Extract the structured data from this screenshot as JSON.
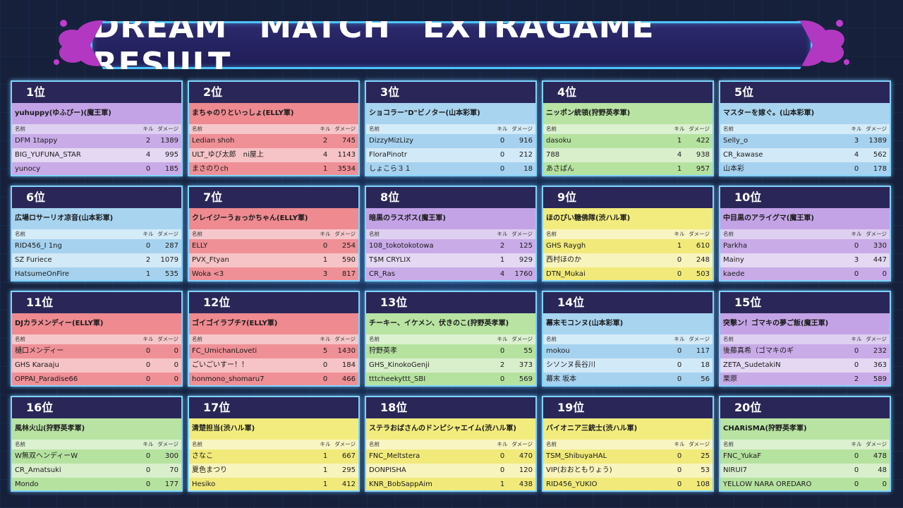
{
  "banner": {
    "title": "DREAM MATCH EXTRAGAME RESULT"
  },
  "colors": {
    "banner_bg": "#2d2a6e",
    "banner_border": "#4ec3ff",
    "rank_bg": "#2a2758",
    "splash": "#c33bd1"
  },
  "header": {
    "name": "名前",
    "kill": "キル",
    "damage": "ダメージ"
  },
  "cards": [
    {
      "rank": "1位",
      "team": "yuhuppy(ゆふぴー)(魔王軍)",
      "theme": "purple",
      "players": [
        {
          "name": "DFM 1tappy",
          "kill": "2",
          "damage": "1389"
        },
        {
          "name": "BIG_YUFUNA_STAR",
          "kill": "4",
          "damage": "995"
        },
        {
          "name": "yunocy",
          "kill": "0",
          "damage": "185"
        }
      ]
    },
    {
      "rank": "2位",
      "team": "まちゃのりといっしょ(ELLY軍)",
      "theme": "red",
      "players": [
        {
          "name": "Ledian shoh",
          "kill": "2",
          "damage": "745"
        },
        {
          "name": "ULT_ゆび太郎　ni屋上",
          "kill": "4",
          "damage": "1143"
        },
        {
          "name": "まさのりch",
          "kill": "1",
          "damage": "3534"
        }
      ]
    },
    {
      "rank": "3位",
      "team": "ショコラー\"D\"ビノター(山本彩軍)",
      "theme": "blue",
      "players": [
        {
          "name": "DizzyMizLizy",
          "kill": "0",
          "damage": "916"
        },
        {
          "name": "FloraPinotr",
          "kill": "0",
          "damage": "212"
        },
        {
          "name": "しょこら３１",
          "kill": "0",
          "damage": "18"
        }
      ]
    },
    {
      "rank": "4位",
      "team": "ニッポン統領(狩野英孝軍)",
      "theme": "green",
      "players": [
        {
          "name": "dasoku",
          "kill": "1",
          "damage": "422"
        },
        {
          "name": "788",
          "kill": "4",
          "damage": "938"
        },
        {
          "name": "あさぱん",
          "kill": "1",
          "damage": "957"
        }
      ]
    },
    {
      "rank": "5位",
      "team": "マスターを嫁ぐ。(山本彩軍)",
      "theme": "blue",
      "players": [
        {
          "name": "Selly_o",
          "kill": "3",
          "damage": "1389"
        },
        {
          "name": "CR_kawase",
          "kill": "4",
          "damage": "562"
        },
        {
          "name": "山本彩",
          "kill": "0",
          "damage": "178"
        }
      ]
    },
    {
      "rank": "6位",
      "team": "広場ロサーリオ凉音(山本彩軍)",
      "theme": "blue",
      "players": [
        {
          "name": "RID456_I 1ng",
          "kill": "0",
          "damage": "287"
        },
        {
          "name": "SZ Furiece",
          "kill": "2",
          "damage": "1079"
        },
        {
          "name": "HatsumeOnFire",
          "kill": "1",
          "damage": "535"
        }
      ]
    },
    {
      "rank": "7位",
      "team": "クレイジーうぉっかちゃん(ELLY軍)",
      "theme": "red",
      "players": [
        {
          "name": "ELLY",
          "kill": "0",
          "damage": "254"
        },
        {
          "name": "PVX_Ftyan",
          "kill": "1",
          "damage": "590"
        },
        {
          "name": "Woka <3",
          "kill": "3",
          "damage": "817"
        }
      ]
    },
    {
      "rank": "8位",
      "team": "暗黒のラスボス(魔王軍)",
      "theme": "purple",
      "players": [
        {
          "name": "108_tokotokotowa",
          "kill": "2",
          "damage": "125"
        },
        {
          "name": "T$M CRYLIX",
          "kill": "1",
          "damage": "929"
        },
        {
          "name": "CR_Ras",
          "kill": "4",
          "damage": "1760"
        }
      ]
    },
    {
      "rank": "9位",
      "team": "ほのぴい糖佛隊(渋ハル軍)",
      "theme": "yellow",
      "players": [
        {
          "name": "GHS Raygh",
          "kill": "1",
          "damage": "610"
        },
        {
          "name": "西村ほのか",
          "kill": "0",
          "damage": "248"
        },
        {
          "name": "DTN_Mukai",
          "kill": "0",
          "damage": "503"
        }
      ]
    },
    {
      "rank": "10位",
      "team": "中目黒のアライグマ(魔王軍)",
      "theme": "purple",
      "players": [
        {
          "name": "Parkha",
          "kill": "0",
          "damage": "330"
        },
        {
          "name": "Mainy",
          "kill": "3",
          "damage": "447"
        },
        {
          "name": "kaede",
          "kill": "0",
          "damage": "0"
        }
      ]
    },
    {
      "rank": "11位",
      "team": "DJカラメンディー(ELLY軍)",
      "theme": "red",
      "players": [
        {
          "name": "樋口メンディー",
          "kill": "0",
          "damage": "0"
        },
        {
          "name": "GHS Karaaju",
          "kill": "0",
          "damage": "0"
        },
        {
          "name": "OPPAI_Paradise66",
          "kill": "0",
          "damage": "0"
        }
      ]
    },
    {
      "rank": "12位",
      "team": "ゴイゴイラブチ7(ELLY軍)",
      "theme": "red",
      "players": [
        {
          "name": "FC_UmichanLoveti",
          "kill": "5",
          "damage": "1430"
        },
        {
          "name": "ごいごいすー！！",
          "kill": "0",
          "damage": "184"
        },
        {
          "name": "honmono_shomaru7",
          "kill": "0",
          "damage": "466"
        }
      ]
    },
    {
      "rank": "13位",
      "team": "チーキー、イケメン、伏きのこ(狩野英孝軍)",
      "theme": "green",
      "players": [
        {
          "name": "狩野英孝",
          "kill": "0",
          "damage": "55"
        },
        {
          "name": "GHS_KinokoGenji",
          "kill": "2",
          "damage": "373"
        },
        {
          "name": "tttcheekyttt_SBI",
          "kill": "0",
          "damage": "569"
        }
      ]
    },
    {
      "rank": "14位",
      "team": "幕末モコンヌ(山本彩軍)",
      "theme": "blue",
      "players": [
        {
          "name": "mokou",
          "kill": "0",
          "damage": "117"
        },
        {
          "name": "シソンヌ長谷川",
          "kill": "0",
          "damage": "18"
        },
        {
          "name": "幕末 坂本",
          "kill": "0",
          "damage": "56"
        }
      ]
    },
    {
      "rank": "15位",
      "team": "突撃ン！ゴマキの夢ご飯(魔王軍)",
      "theme": "purple",
      "players": [
        {
          "name": "後藤真希（ゴマキのギ",
          "kill": "0",
          "damage": "232"
        },
        {
          "name": "ZETA_SudetakiN",
          "kill": "0",
          "damage": "363"
        },
        {
          "name": "栗原",
          "kill": "2",
          "damage": "589"
        }
      ]
    },
    {
      "rank": "16位",
      "team": "風林火山(狩野英孝軍)",
      "theme": "green",
      "players": [
        {
          "name": "W無双ヘンディーW",
          "kill": "0",
          "damage": "300"
        },
        {
          "name": "CR_Amatsuki",
          "kill": "0",
          "damage": "70"
        },
        {
          "name": "Mondo",
          "kill": "0",
          "damage": "177"
        }
      ]
    },
    {
      "rank": "17位",
      "team": "清楚担当(渋ハル軍)",
      "theme": "yellow",
      "players": [
        {
          "name": "さなこ",
          "kill": "1",
          "damage": "667"
        },
        {
          "name": "夏色まつり",
          "kill": "1",
          "damage": "295"
        },
        {
          "name": "Hesiko",
          "kill": "1",
          "damage": "412"
        }
      ]
    },
    {
      "rank": "18位",
      "team": "ステラおばさんのドンピシャエイム(渋ハル軍)",
      "theme": "yellow",
      "players": [
        {
          "name": "FNC_Meltstera",
          "kill": "0",
          "damage": "470"
        },
        {
          "name": "DONPISHA",
          "kill": "0",
          "damage": "120"
        },
        {
          "name": "KNR_BobSappAim",
          "kill": "1",
          "damage": "438"
        }
      ]
    },
    {
      "rank": "19位",
      "team": "バイオニア三銃士(渋ハル軍)",
      "theme": "yellow",
      "players": [
        {
          "name": "TSM_ShibuyaHAL",
          "kill": "0",
          "damage": "25"
        },
        {
          "name": "VIP(おおともりょう)",
          "kill": "0",
          "damage": "53"
        },
        {
          "name": "RID456_YUKIO",
          "kill": "0",
          "damage": "108"
        }
      ]
    },
    {
      "rank": "20位",
      "team": "CHARiSMA(狩野英孝軍)",
      "theme": "green",
      "players": [
        {
          "name": "FNC_YukaF",
          "kill": "0",
          "damage": "478"
        },
        {
          "name": "NIRUI7",
          "kill": "0",
          "damage": "48"
        },
        {
          "name": "YELLOW NARA OREDARO",
          "kill": "0",
          "damage": "0"
        }
      ]
    }
  ]
}
